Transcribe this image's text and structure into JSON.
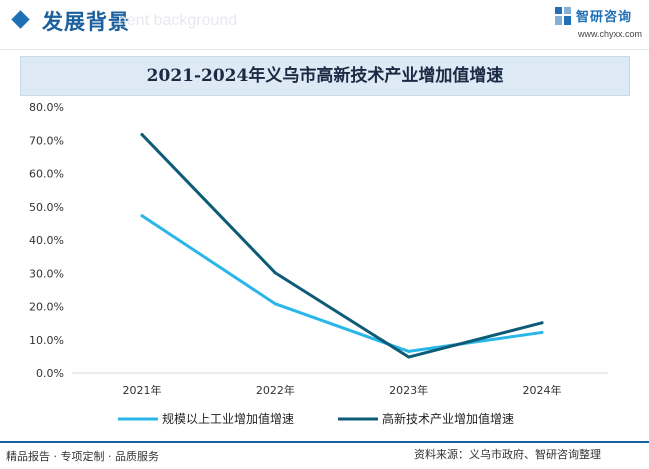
{
  "header": {
    "section_title": "发展背景",
    "section_subtitle": "nent background",
    "logo_text": "智研咨询",
    "logo_url": "www.chyxx.com"
  },
  "footer": {
    "left": "精品报告 · 专项定制 · 品质服务",
    "source": "资料来源：义乌市政府、智研咨询整理"
  },
  "colors": {
    "brand": "#1f6fb5",
    "series_1": "#29b6e8",
    "series_2": "#0e5b78"
  },
  "chart_data": {
    "type": "line",
    "title": "2021-2024年义乌市高新技术产业增加值增速",
    "x": [
      "2021年",
      "2022年",
      "2023年",
      "2024年"
    ],
    "ylim": [
      0,
      80
    ],
    "yticks": [
      "0.0%",
      "10.0%",
      "20.0%",
      "30.0%",
      "40.0%",
      "50.0%",
      "60.0%",
      "70.0%",
      "80.0%"
    ],
    "ytick_values": [
      0,
      10,
      20,
      30,
      40,
      50,
      60,
      70,
      80
    ],
    "grid": false,
    "legend": "bottom",
    "series": [
      {
        "name": "规模以上工业增加值增速",
        "values": [
          47.3,
          20.8,
          6.5,
          12.2
        ],
        "color": "#29b6e8"
      },
      {
        "name": "高新技术产业增加值增速",
        "values": [
          71.7,
          30.1,
          4.8,
          15.1
        ],
        "color": "#0e5b78"
      }
    ]
  }
}
